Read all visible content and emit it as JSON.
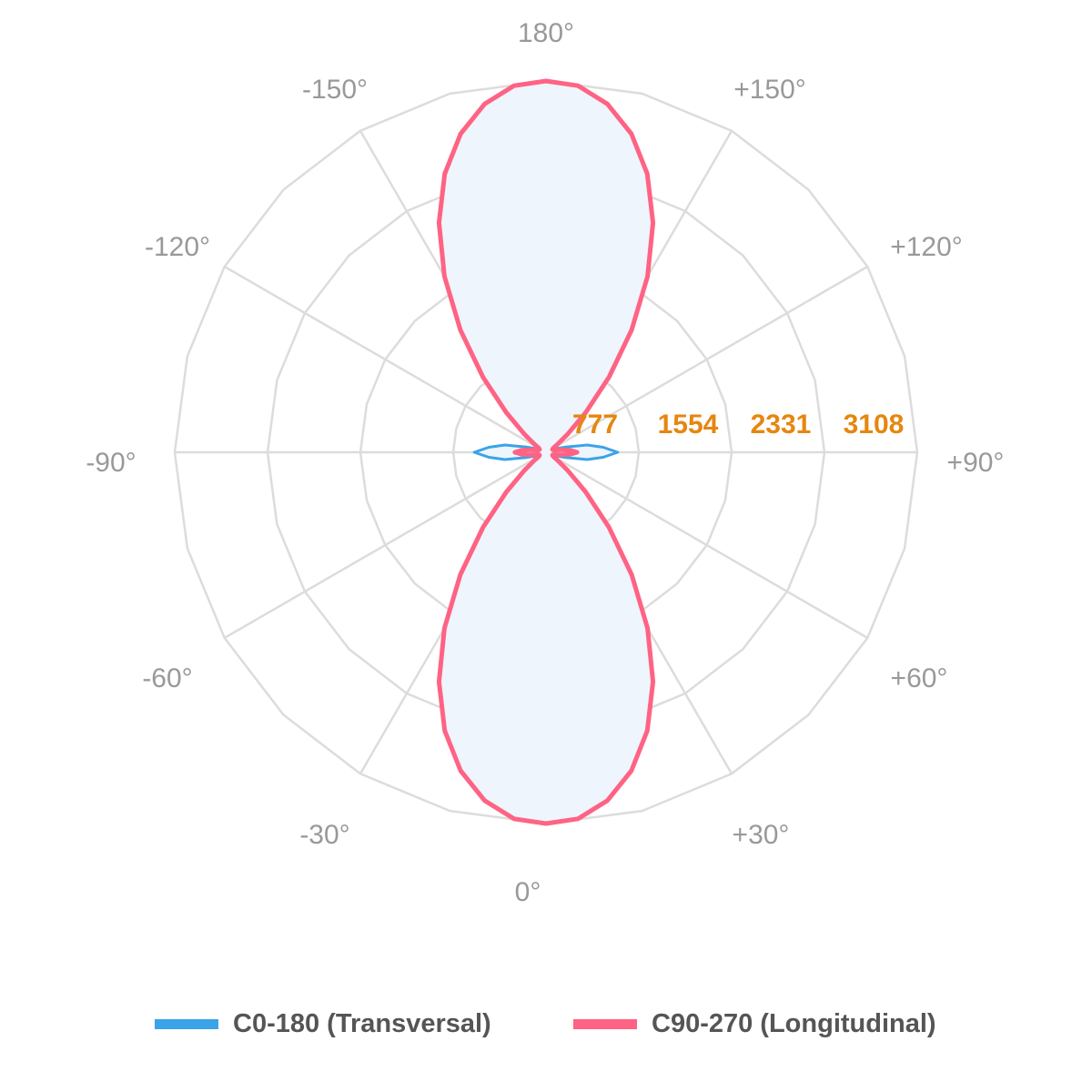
{
  "chart_data": {
    "type": "polar",
    "angle_labels": [
      "0°",
      "+30°",
      "+60°",
      "+90°",
      "+120°",
      "+150°",
      "180°",
      "-150°",
      "-120°",
      "-90°",
      "-60°",
      "-30°"
    ],
    "radial_ticks": [
      777,
      1554,
      2331,
      3108
    ],
    "radial_tick_labels": [
      "777",
      "1554",
      "2331",
      "3108"
    ],
    "rmax": 3108,
    "grid": true,
    "legend_position": "bottom",
    "series": [
      {
        "name": "C0-180 (Transversal)",
        "color": "#3ba3e8",
        "fill": "#eef5fc",
        "angles": [
          0,
          5,
          10,
          15,
          20,
          25,
          30,
          35,
          40,
          45,
          50,
          55,
          60,
          65,
          70,
          75,
          80,
          85,
          90,
          95,
          100,
          105,
          110,
          115,
          120,
          125,
          130,
          135,
          140,
          145,
          150,
          155,
          160,
          165,
          170,
          175,
          180
        ],
        "values": [
          3108,
          3080,
          2960,
          2760,
          2480,
          2120,
          1700,
          1250,
          820,
          470,
          240,
          120,
          75,
          70,
          90,
          170,
          350,
          480,
          600,
          480,
          350,
          170,
          90,
          70,
          75,
          120,
          240,
          470,
          820,
          1250,
          1700,
          2120,
          2480,
          2760,
          2960,
          3080,
          3108
        ]
      },
      {
        "name": "C90-270 (Longitudinal)",
        "color": "#ff6384",
        "fill": "none",
        "angles": [
          0,
          5,
          10,
          15,
          20,
          25,
          30,
          35,
          40,
          45,
          50,
          55,
          60,
          65,
          70,
          75,
          80,
          85,
          90,
          95,
          100,
          105,
          110,
          115,
          120,
          125,
          130,
          135,
          140,
          145,
          150,
          155,
          160,
          165,
          170,
          175,
          180
        ],
        "values": [
          3108,
          3080,
          2960,
          2760,
          2480,
          2120,
          1700,
          1250,
          820,
          470,
          240,
          120,
          70,
          60,
          60,
          70,
          120,
          200,
          260,
          200,
          120,
          70,
          60,
          60,
          70,
          120,
          240,
          470,
          820,
          1250,
          1700,
          2120,
          2480,
          2760,
          2960,
          3080,
          3108
        ]
      }
    ]
  }
}
